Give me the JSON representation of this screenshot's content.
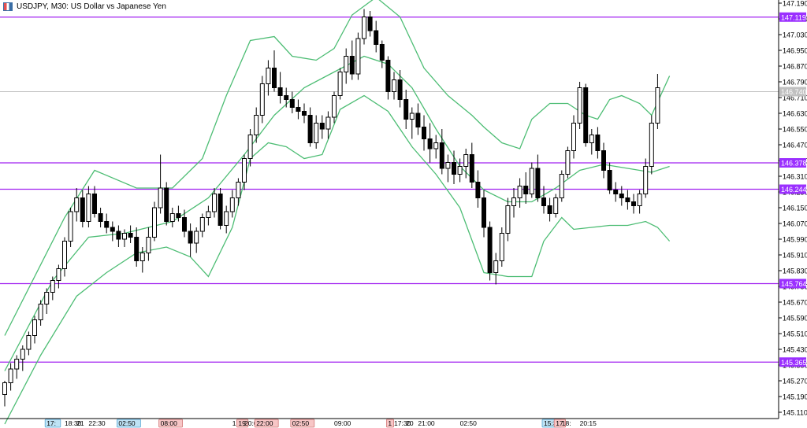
{
  "window": {
    "title": "USDJPY, M30:  US Dollar vs Japanese Yen",
    "icon": "chart-window-icon"
  },
  "colors": {
    "background": "#ffffff",
    "bull_candle_body": "#ffffff",
    "bear_candle_body": "#000000",
    "candle_outline": "#000000",
    "bollinger": "#4dbd74",
    "level_lines": "#a020f0",
    "level_label_bg": "#9b30ff",
    "level_label_text": "#ffffff",
    "axis_text": "#000000",
    "bid_line": "#c0c0c0",
    "bid_label_bg": "#c0c0c0"
  },
  "chart_data": {
    "type": "candlestick",
    "symbol": "USDJPY",
    "timeframe": "M30",
    "ylim": [
      145.11,
      147.19
    ],
    "price_axis_ticks": [
      "147.190",
      "147.110",
      "147.030",
      "146.950",
      "146.870",
      "146.790",
      "146.710",
      "146.630",
      "146.550",
      "146.470",
      "146.390",
      "146.310",
      "146.230",
      "146.150",
      "146.070",
      "145.990",
      "145.910",
      "145.830",
      "145.750",
      "145.670",
      "145.590",
      "145.510",
      "145.430",
      "145.350",
      "145.270",
      "145.190",
      "145.110"
    ],
    "levels": [
      {
        "price": 147.119,
        "label": "147.119"
      },
      {
        "price": 146.378,
        "label": "146.378"
      },
      {
        "price": 146.244,
        "label": "146.244"
      },
      {
        "price": 145.764,
        "label": "145.764"
      },
      {
        "price": 145.365,
        "label": "145.365"
      }
    ],
    "bid_line": {
      "price": 146.74,
      "label": "146.740"
    },
    "time_labels": [
      {
        "index": 7,
        "label": "17:",
        "style": "blue"
      },
      {
        "index": 10,
        "label": "18:30",
        "style": "plain"
      },
      {
        "index": 12,
        "label": "21",
        "style": "plain"
      },
      {
        "index": 14,
        "label": "22:30",
        "style": "plain"
      },
      {
        "index": 19,
        "label": "02:50",
        "style": "blue"
      },
      {
        "index": 26,
        "label": "08:00",
        "style": "red"
      },
      {
        "index": 38,
        "label": "1",
        "style": "plain"
      },
      {
        "index": 39,
        "label": "19",
        "style": "red"
      },
      {
        "index": 40,
        "label": "20:00",
        "style": "plain"
      },
      {
        "index": 42,
        "label": "22:00",
        "style": "red"
      },
      {
        "index": 48,
        "label": "02:50",
        "style": "red"
      },
      {
        "index": 55,
        "label": "09:00",
        "style": "plain"
      },
      {
        "index": 64,
        "label": "1",
        "style": "red"
      },
      {
        "index": 65,
        "label": "17:30",
        "style": "plain"
      },
      {
        "index": 67,
        "label": "20",
        "style": "plain"
      },
      {
        "index": 69,
        "label": "21:00",
        "style": "plain"
      },
      {
        "index": 76,
        "label": "02:50",
        "style": "plain"
      },
      {
        "index": 90,
        "label": "15:3",
        "style": "blue"
      },
      {
        "index": 92,
        "label": "17",
        "style": "red"
      },
      {
        "index": 93,
        "label": "18:",
        "style": "plain"
      },
      {
        "index": 96,
        "label": "20:15",
        "style": "plain"
      }
    ],
    "candles": [
      [
        145.2,
        145.27,
        145.14,
        145.26
      ],
      [
        145.26,
        145.36,
        145.22,
        145.33
      ],
      [
        145.33,
        145.4,
        145.28,
        145.38
      ],
      [
        145.38,
        145.45,
        145.32,
        145.43
      ],
      [
        145.43,
        145.52,
        145.4,
        145.5
      ],
      [
        145.5,
        145.6,
        145.46,
        145.58
      ],
      [
        145.58,
        145.68,
        145.55,
        145.66
      ],
      [
        145.66,
        145.74,
        145.61,
        145.72
      ],
      [
        145.72,
        145.8,
        145.68,
        145.78
      ],
      [
        145.78,
        145.86,
        145.74,
        145.84
      ],
      [
        145.84,
        146.0,
        145.8,
        145.98
      ],
      [
        145.98,
        146.15,
        145.95,
        146.13
      ],
      [
        146.13,
        146.25,
        146.08,
        146.2
      ],
      [
        146.2,
        146.24,
        146.05,
        146.08
      ],
      [
        146.08,
        146.26,
        146.05,
        146.22
      ],
      [
        146.22,
        146.26,
        146.1,
        146.12
      ],
      [
        146.12,
        146.15,
        146.05,
        146.08
      ],
      [
        146.08,
        146.12,
        146.02,
        146.05
      ],
      [
        146.05,
        146.08,
        145.98,
        146.03
      ],
      [
        146.03,
        146.06,
        145.95,
        145.99
      ],
      [
        145.99,
        146.04,
        145.95,
        146.02
      ],
      [
        146.02,
        146.06,
        145.97,
        146.0
      ],
      [
        146.0,
        146.05,
        145.85,
        145.88
      ],
      [
        145.88,
        145.95,
        145.82,
        145.92
      ],
      [
        145.92,
        146.05,
        145.88,
        146.0
      ],
      [
        146.0,
        146.18,
        145.98,
        146.15
      ],
      [
        146.15,
        146.42,
        146.12,
        146.25
      ],
      [
        146.25,
        146.28,
        146.06,
        146.08
      ],
      [
        146.08,
        146.15,
        146.05,
        146.12
      ],
      [
        146.12,
        146.16,
        146.08,
        146.1
      ],
      [
        146.1,
        146.14,
        146.0,
        146.03
      ],
      [
        146.03,
        146.07,
        145.9,
        145.97
      ],
      [
        145.97,
        146.05,
        145.92,
        146.03
      ],
      [
        146.03,
        146.12,
        146.0,
        146.1
      ],
      [
        146.1,
        146.16,
        146.06,
        146.13
      ],
      [
        146.13,
        146.25,
        146.1,
        146.22
      ],
      [
        146.22,
        146.25,
        146.04,
        146.06
      ],
      [
        146.06,
        146.16,
        146.02,
        146.13
      ],
      [
        146.13,
        146.24,
        146.1,
        146.2
      ],
      [
        146.2,
        146.3,
        146.16,
        146.28
      ],
      [
        146.28,
        146.42,
        146.24,
        146.4
      ],
      [
        146.4,
        146.55,
        146.36,
        146.52
      ],
      [
        146.52,
        146.66,
        146.48,
        146.62
      ],
      [
        146.62,
        146.82,
        146.58,
        146.78
      ],
      [
        146.78,
        146.9,
        146.72,
        146.86
      ],
      [
        146.86,
        146.95,
        146.74,
        146.76
      ],
      [
        146.76,
        146.84,
        146.68,
        146.72
      ],
      [
        146.72,
        146.76,
        146.66,
        146.7
      ],
      [
        146.7,
        146.74,
        146.63,
        146.66
      ],
      [
        146.66,
        146.7,
        146.6,
        146.64
      ],
      [
        146.64,
        146.68,
        146.58,
        146.62
      ],
      [
        146.62,
        146.66,
        146.46,
        146.48
      ],
      [
        146.48,
        146.62,
        146.45,
        146.58
      ],
      [
        146.58,
        146.62,
        146.5,
        146.55
      ],
      [
        146.55,
        146.64,
        146.5,
        146.61
      ],
      [
        146.61,
        146.74,
        146.58,
        146.72
      ],
      [
        146.72,
        146.86,
        146.7,
        146.84
      ],
      [
        146.84,
        146.96,
        146.78,
        146.92
      ],
      [
        146.92,
        147.0,
        146.8,
        146.83
      ],
      [
        146.83,
        147.04,
        146.8,
        147.01
      ],
      [
        147.01,
        147.16,
        146.98,
        147.12
      ],
      [
        147.12,
        147.15,
        147.02,
        147.05
      ],
      [
        147.05,
        147.1,
        146.94,
        146.98
      ],
      [
        146.98,
        147.0,
        146.86,
        146.9
      ],
      [
        146.9,
        146.92,
        146.7,
        146.74
      ],
      [
        146.74,
        146.84,
        146.7,
        146.8
      ],
      [
        146.8,
        146.85,
        146.66,
        146.7
      ],
      [
        146.7,
        146.75,
        146.55,
        146.6
      ],
      [
        146.6,
        146.66,
        146.5,
        146.63
      ],
      [
        146.63,
        146.68,
        146.52,
        146.56
      ],
      [
        146.56,
        146.62,
        146.44,
        146.5
      ],
      [
        146.5,
        146.58,
        146.38,
        146.45
      ],
      [
        146.45,
        146.52,
        146.4,
        146.48
      ],
      [
        146.48,
        146.55,
        146.32,
        146.35
      ],
      [
        146.35,
        146.42,
        146.28,
        146.38
      ],
      [
        146.38,
        146.44,
        146.27,
        146.32
      ],
      [
        146.32,
        146.4,
        146.28,
        146.36
      ],
      [
        146.36,
        146.45,
        146.3,
        146.42
      ],
      [
        146.42,
        146.48,
        146.25,
        146.28
      ],
      [
        146.28,
        146.34,
        146.15,
        146.2
      ],
      [
        146.2,
        146.24,
        146.0,
        146.05
      ],
      [
        146.05,
        146.08,
        145.78,
        145.82
      ],
      [
        145.82,
        145.92,
        145.76,
        145.88
      ],
      [
        145.88,
        146.05,
        145.85,
        146.02
      ],
      [
        146.02,
        146.2,
        145.98,
        146.16
      ],
      [
        146.16,
        146.25,
        146.1,
        146.2
      ],
      [
        146.2,
        146.3,
        146.15,
        146.26
      ],
      [
        146.26,
        146.33,
        146.17,
        146.22
      ],
      [
        146.22,
        146.38,
        146.2,
        146.35
      ],
      [
        146.35,
        146.42,
        146.18,
        146.2
      ],
      [
        146.2,
        146.26,
        146.12,
        146.16
      ],
      [
        146.16,
        146.2,
        146.08,
        146.12
      ],
      [
        146.12,
        146.22,
        146.1,
        146.2
      ],
      [
        146.2,
        146.34,
        146.18,
        146.32
      ],
      [
        146.32,
        146.46,
        146.3,
        146.44
      ],
      [
        146.44,
        146.62,
        146.4,
        146.58
      ],
      [
        146.58,
        146.79,
        146.55,
        146.76
      ],
      [
        146.76,
        146.78,
        146.46,
        146.48
      ],
      [
        146.48,
        146.55,
        146.42,
        146.52
      ],
      [
        146.52,
        146.56,
        146.4,
        146.44
      ],
      [
        146.44,
        146.48,
        146.3,
        146.34
      ],
      [
        146.34,
        146.38,
        146.22,
        146.24
      ],
      [
        146.24,
        146.28,
        146.18,
        146.22
      ],
      [
        146.22,
        146.26,
        146.16,
        146.2
      ],
      [
        146.2,
        146.24,
        146.14,
        146.18
      ],
      [
        146.18,
        146.22,
        146.12,
        146.16
      ],
      [
        146.16,
        146.24,
        146.12,
        146.22
      ],
      [
        146.22,
        146.4,
        146.2,
        146.36
      ],
      [
        146.36,
        146.62,
        146.32,
        146.58
      ],
      [
        146.58,
        146.83,
        146.55,
        146.76
      ]
    ],
    "bollinger": {
      "upper": [
        [
          0,
          145.5
        ],
        [
          10,
          146.1
        ],
        [
          15,
          146.34
        ],
        [
          22,
          146.25
        ],
        [
          28,
          146.25
        ],
        [
          33,
          146.4
        ],
        [
          37,
          146.72
        ],
        [
          41,
          147.0
        ],
        [
          45,
          147.02
        ],
        [
          48,
          146.92
        ],
        [
          52,
          146.9
        ],
        [
          55,
          146.96
        ],
        [
          58,
          147.13
        ],
        [
          62,
          147.22
        ],
        [
          66,
          147.12
        ],
        [
          70,
          146.86
        ],
        [
          74,
          146.72
        ],
        [
          78,
          146.62
        ],
        [
          80,
          146.56
        ],
        [
          83,
          146.48
        ],
        [
          86,
          146.45
        ],
        [
          88,
          146.6
        ],
        [
          91,
          146.68
        ],
        [
          94,
          146.68
        ],
        [
          97,
          146.62
        ],
        [
          99,
          146.6
        ],
        [
          101,
          146.7
        ],
        [
          103,
          146.72
        ],
        [
          106,
          146.68
        ],
        [
          108,
          146.62
        ],
        [
          111,
          146.82
        ]
      ],
      "middle": [
        [
          0,
          145.32
        ],
        [
          8,
          145.78
        ],
        [
          14,
          146.0
        ],
        [
          20,
          146.02
        ],
        [
          28,
          146.08
        ],
        [
          34,
          146.2
        ],
        [
          40,
          146.42
        ],
        [
          45,
          146.62
        ],
        [
          50,
          146.76
        ],
        [
          55,
          146.84
        ],
        [
          60,
          146.92
        ],
        [
          64,
          146.88
        ],
        [
          68,
          146.76
        ],
        [
          72,
          146.55
        ],
        [
          76,
          146.36
        ],
        [
          80,
          146.24
        ],
        [
          84,
          146.18
        ],
        [
          88,
          146.18
        ],
        [
          92,
          146.25
        ],
        [
          96,
          146.34
        ],
        [
          100,
          146.37
        ],
        [
          104,
          146.35
        ],
        [
          108,
          146.33
        ],
        [
          111,
          146.36
        ]
      ],
      "lower": [
        [
          0,
          145.05
        ],
        [
          6,
          145.4
        ],
        [
          12,
          145.7
        ],
        [
          17,
          145.82
        ],
        [
          22,
          145.92
        ],
        [
          27,
          145.95
        ],
        [
          31,
          145.9
        ],
        [
          34,
          145.8
        ],
        [
          38,
          146.05
        ],
        [
          41,
          146.4
        ],
        [
          44,
          146.48
        ],
        [
          47,
          146.46
        ],
        [
          50,
          146.4
        ],
        [
          53,
          146.42
        ],
        [
          56,
          146.65
        ],
        [
          60,
          146.72
        ],
        [
          64,
          146.64
        ],
        [
          68,
          146.46
        ],
        [
          72,
          146.32
        ],
        [
          76,
          146.15
        ],
        [
          80,
          145.82
        ],
        [
          84,
          145.8
        ],
        [
          88,
          145.8
        ],
        [
          90,
          145.98
        ],
        [
          93,
          146.1
        ],
        [
          95,
          146.04
        ],
        [
          98,
          146.05
        ],
        [
          101,
          146.06
        ],
        [
          104,
          146.06
        ],
        [
          107,
          146.08
        ],
        [
          109,
          146.05
        ],
        [
          111,
          145.98
        ]
      ]
    }
  }
}
